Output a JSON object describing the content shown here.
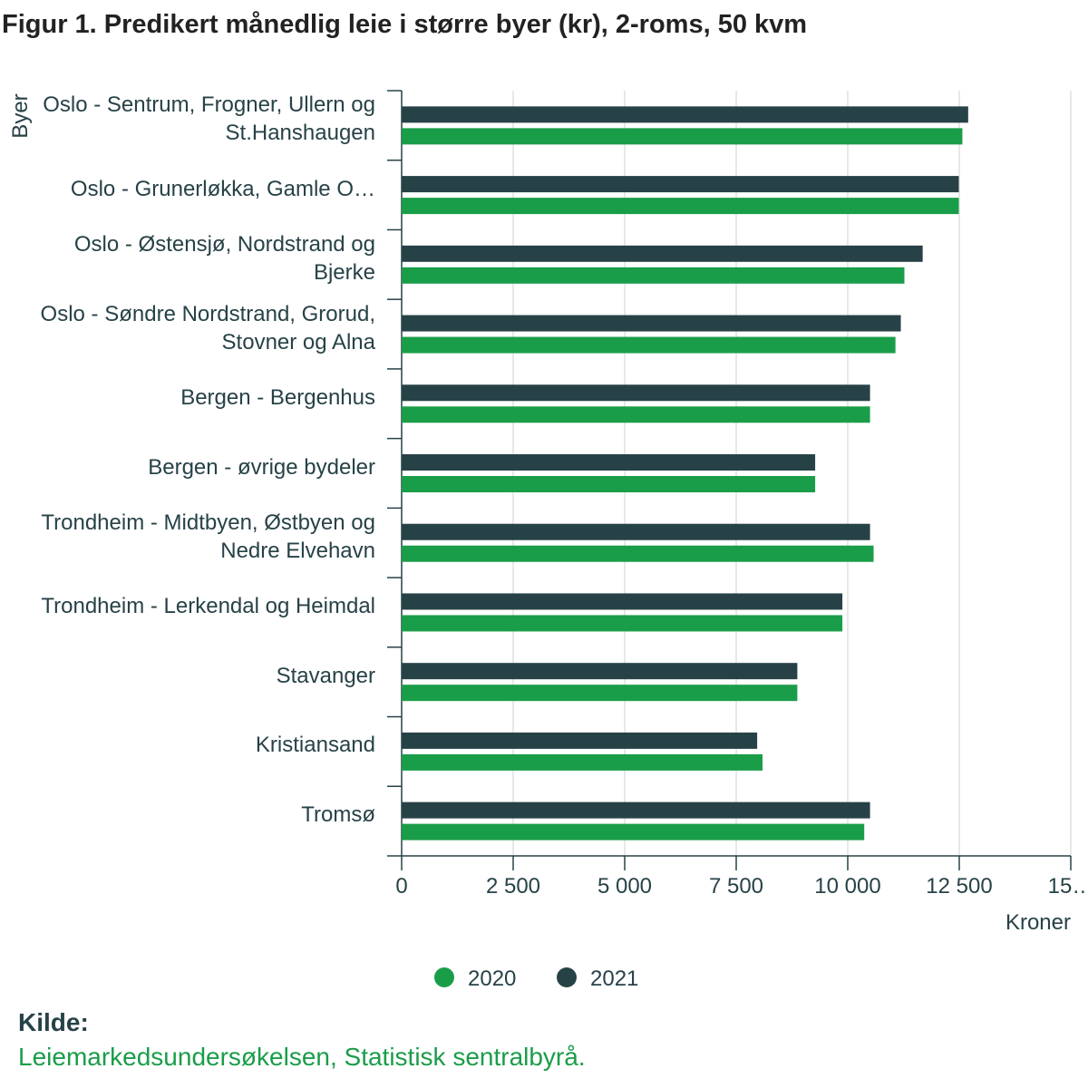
{
  "chart_data": {
    "type": "bar",
    "orientation": "horizontal",
    "title": "Figur 1. Predikert månedlig leie i større byer (kr), 2-roms, 50 kvm",
    "y_label": "Byer",
    "x_label": "Kroner",
    "categories": [
      "Oslo - Sentrum, Frogner, Ullern og St.Hanshaugen",
      "Oslo - Grunerløkka, Gamle O…",
      "Oslo - Østensjø, Nordstrand og Bjerke",
      "Oslo - Søndre Nordstrand, Grorud, Stovner og Alna",
      "Bergen - Bergenhus",
      "Bergen - øvrige bydeler",
      "Trondheim - Midtbyen, Østbyen og Nedre Elvehavn",
      "Trondheim - Lerkendal og Heimdal",
      "Stavanger",
      "Kristiansand",
      "Tromsø"
    ],
    "series": [
      {
        "name": "2020",
        "color": "#1a9d49",
        "values": [
          12570,
          12490,
          11270,
          11070,
          10500,
          9270,
          10580,
          9880,
          8870,
          8090,
          10370
        ]
      },
      {
        "name": "2021",
        "color": "#274247",
        "values": [
          12700,
          12490,
          11680,
          11190,
          10500,
          9270,
          10500,
          9880,
          8870,
          7970,
          10500
        ]
      }
    ],
    "xlim": [
      0,
      15000
    ],
    "xticks": [
      0,
      {
        "value": 2500,
        "label": "2 500"
      },
      {
        "value": 5000,
        "label": "5 000"
      },
      {
        "value": 7500,
        "label": "7 500"
      },
      {
        "value": 10000,
        "label": "10 000"
      },
      {
        "value": 12500,
        "label": "12 500"
      },
      {
        "value": 15000,
        "label": "15…"
      }
    ],
    "grid": true,
    "source_heading": "Kilde:",
    "source": "Leiemarkedsundersøkelsen, Statistisk sentralbyrå."
  }
}
